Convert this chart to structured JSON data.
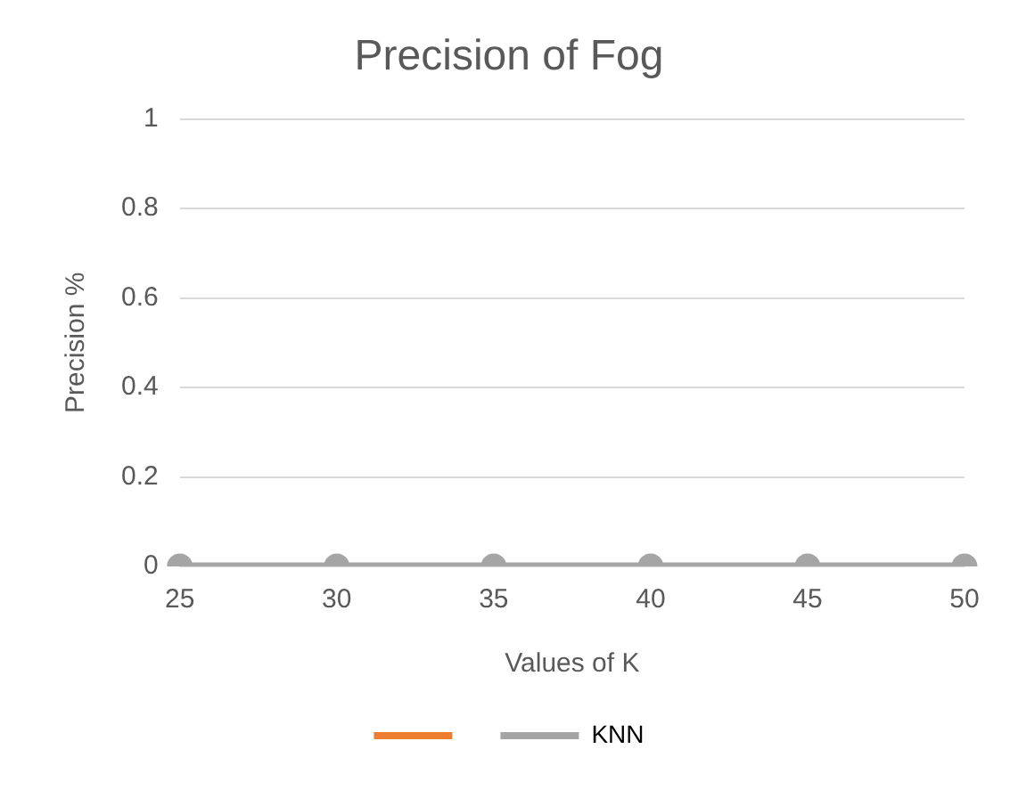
{
  "chart_data": {
    "type": "line",
    "title": "Precision of Fog",
    "xlabel": "Values of K",
    "ylabel": "Precision %",
    "categories": [
      "25",
      "30",
      "35",
      "40",
      "45",
      "50"
    ],
    "series": [
      {
        "color": "#ed7d31",
        "values": [
          null,
          null,
          null,
          null,
          null,
          null
        ]
      },
      {
        "name": "KNN",
        "color": "#a5a5a5",
        "values": [
          0,
          0,
          0,
          0,
          0,
          0
        ]
      }
    ],
    "ylim": [
      0,
      1
    ],
    "yticks": [
      0,
      0.2,
      0.4,
      0.6,
      0.8,
      1
    ],
    "grid": "y",
    "legend": "bottom",
    "marker": "circle",
    "line_style": "solid"
  }
}
